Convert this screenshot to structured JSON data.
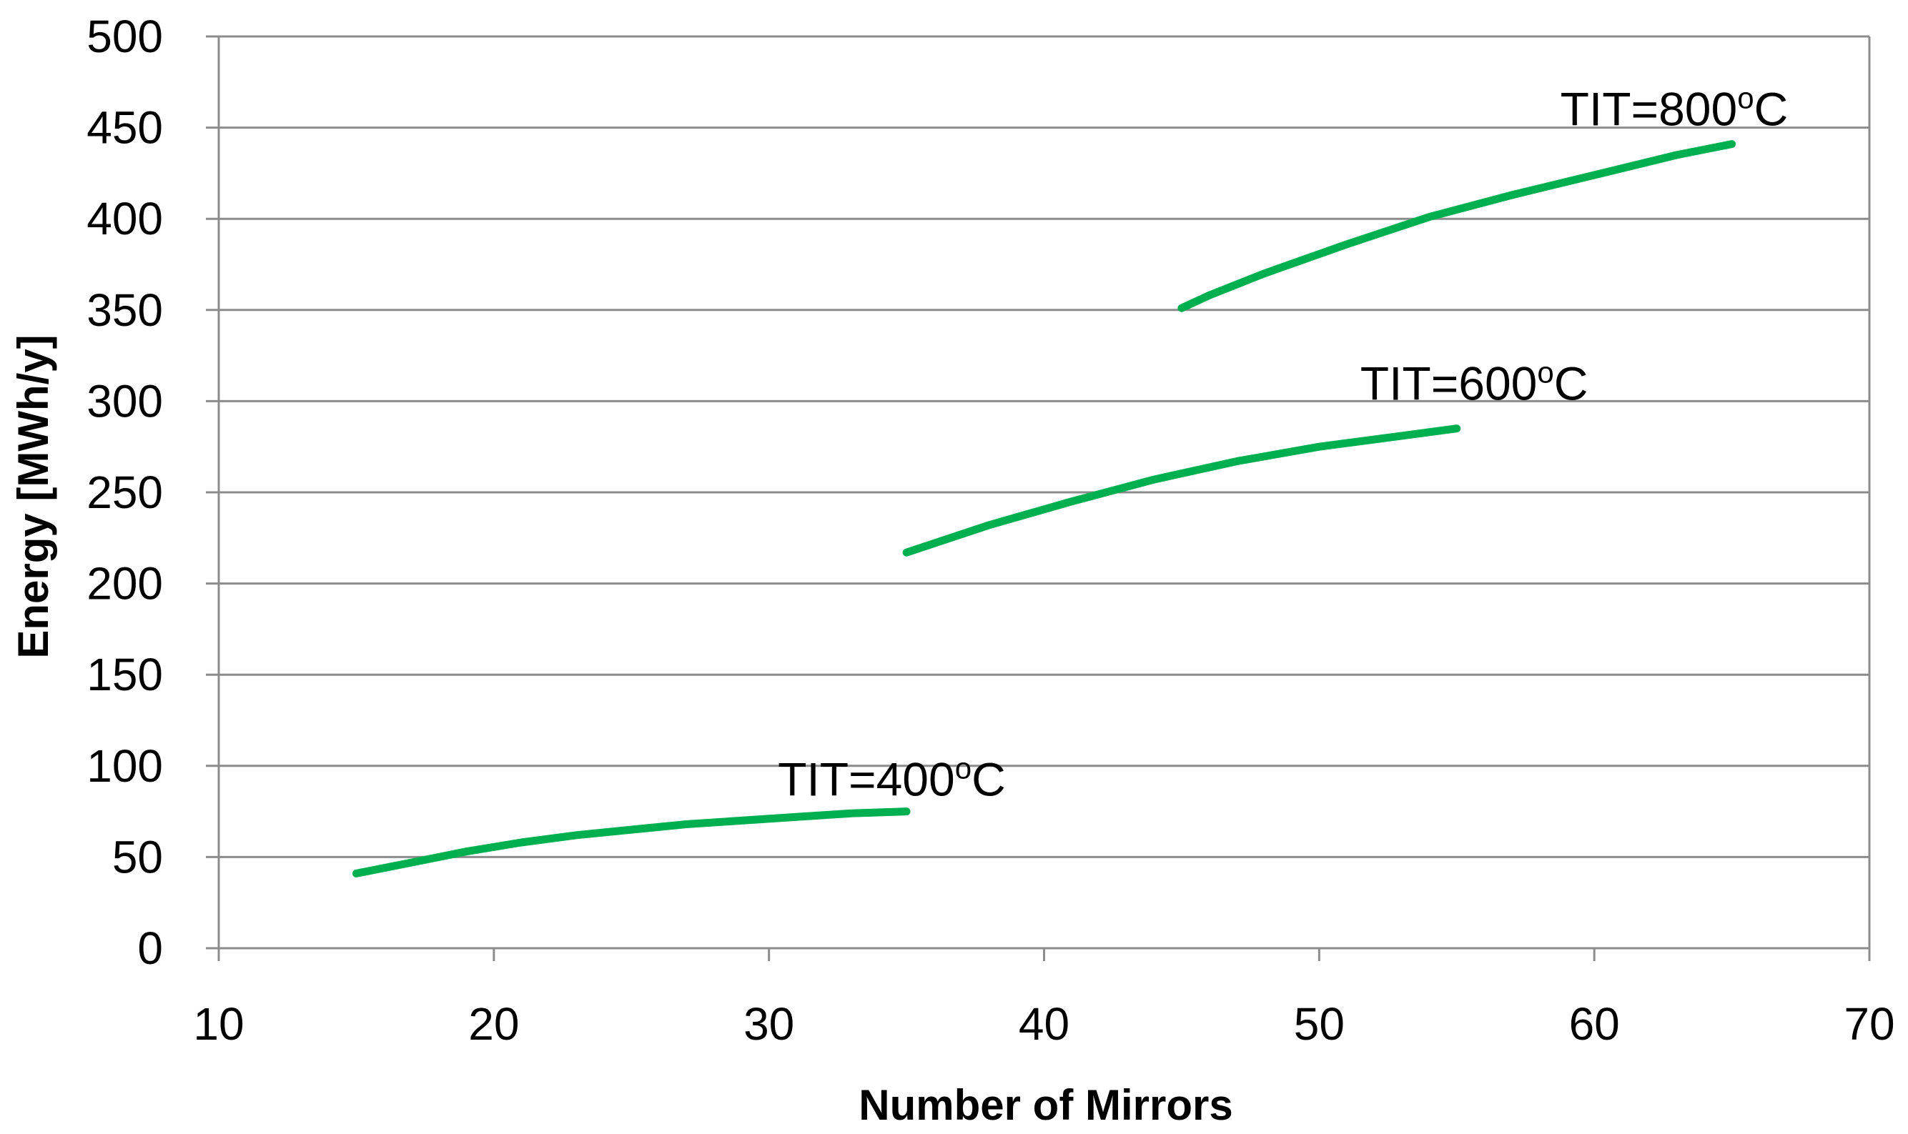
{
  "chart_data": {
    "type": "line",
    "title": "",
    "xlabel": "Number of Mirrors",
    "ylabel": "Energy [MWh/y]",
    "xlim": [
      10,
      70
    ],
    "ylim": [
      0,
      500
    ],
    "xticks": [
      10,
      20,
      30,
      40,
      50,
      60,
      70
    ],
    "yticks": [
      0,
      50,
      100,
      150,
      200,
      250,
      300,
      350,
      400,
      450,
      500
    ],
    "grid": "horizontal",
    "legend": "none",
    "line_color": "#00B050",
    "series": [
      {
        "annotation": {
          "prefix": "TIT=400",
          "sup": "o",
          "suffix": "C"
        },
        "x": [
          15,
          17,
          19,
          21,
          23,
          25,
          27,
          29,
          31,
          33,
          35
        ],
        "y": [
          41,
          47,
          53,
          58,
          62,
          65,
          68,
          70,
          72,
          74,
          75
        ]
      },
      {
        "annotation": {
          "prefix": "TIT=600",
          "sup": "o",
          "suffix": "C"
        },
        "x": [
          35,
          38,
          41,
          44,
          47,
          50,
          53,
          55
        ],
        "y": [
          217,
          232,
          245,
          257,
          267,
          275,
          281,
          285
        ]
      },
      {
        "annotation": {
          "prefix": "TIT=800",
          "sup": "o",
          "suffix": "C"
        },
        "x": [
          45,
          46,
          48,
          51,
          54,
          57,
          60,
          63,
          65
        ],
        "y": [
          351,
          358,
          370,
          386,
          401,
          413,
          424,
          435,
          441
        ]
      }
    ]
  }
}
